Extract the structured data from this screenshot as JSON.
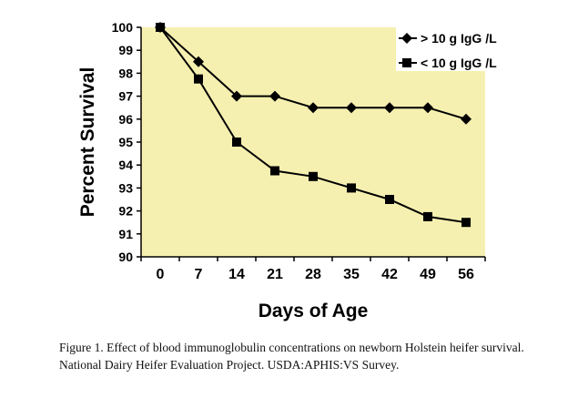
{
  "chart_data": {
    "type": "line",
    "xlabel": "Days of Age",
    "ylabel": "Percent Survival",
    "categories": [
      "0",
      "7",
      "14",
      "21",
      "28",
      "35",
      "42",
      "49",
      "56"
    ],
    "ylim": [
      90,
      100
    ],
    "yticks": [
      90,
      91,
      92,
      93,
      94,
      95,
      96,
      97,
      98,
      99,
      100
    ],
    "grid": false,
    "legend_position": "top-right",
    "background_color": "#f6f0b0",
    "series": [
      {
        "name": "> 10 g IgG /L",
        "marker": "diamond",
        "color": "#000000",
        "values": [
          100,
          98.5,
          97,
          97,
          96.5,
          96.5,
          96.5,
          96.5,
          96
        ]
      },
      {
        "name": "< 10 g IgG /L",
        "marker": "square",
        "color": "#000000",
        "values": [
          100,
          97.75,
          95,
          93.75,
          93.5,
          93,
          92.5,
          91.75,
          91.5
        ]
      }
    ]
  },
  "caption": "Figure 1. Effect of blood immunoglobulin concentrations on newborn Holstein heifer survival. National Dairy Heifer Evaluation Project. USDA:APHIS:VS Survey."
}
